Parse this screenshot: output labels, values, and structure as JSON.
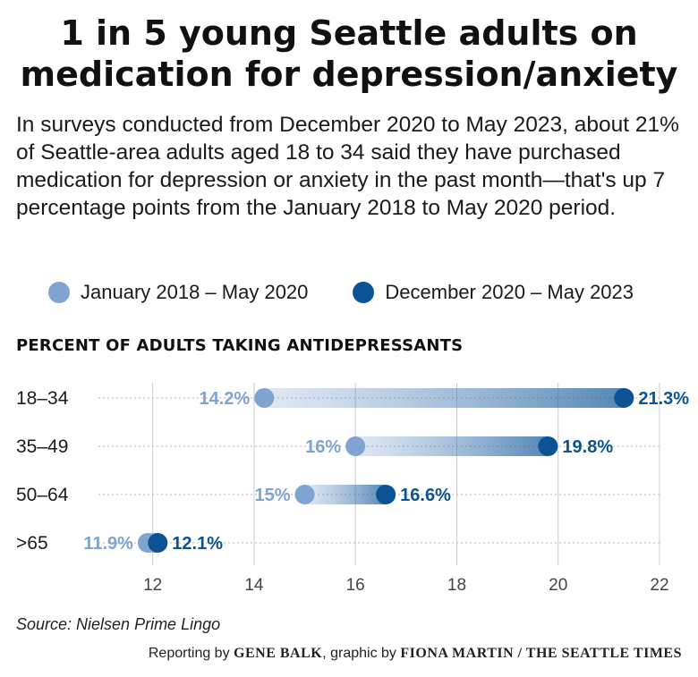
{
  "title": "1 in 5 young Seattle adults on medication for depression/anxiety",
  "subtitle": "In surveys conducted from December 2020 to May 2023, about 21% of Seattle-area adults aged 18 to 34 said they have purchased medication for depression or anxiety in the past month—that's up 7 percentage points from the January 2018 to May 2020 period.",
  "legend": [
    {
      "label": "January 2018 – May 2020",
      "color": "#7fa4d2"
    },
    {
      "label": "December 2020 – May 2023",
      "color": "#0b5394"
    }
  ],
  "chart_heading": "PERCENT OF ADULTS TAKING ANTIDEPRESSANTS",
  "chart_data": {
    "type": "dumbbell",
    "categories": [
      "18–34",
      "35–49",
      "50–64",
      ">65"
    ],
    "series": [
      {
        "name": "January 2018 – May 2020",
        "values": [
          14.2,
          16,
          15,
          11.9
        ],
        "labels": [
          "14.2%",
          "16%",
          "15%",
          "11.9%"
        ],
        "color": "#7fa4d2"
      },
      {
        "name": "December 2020 – May 2023",
        "values": [
          21.3,
          19.8,
          16.6,
          12.1
        ],
        "labels": [
          "21.3%",
          "19.8%",
          "16.6%",
          "12.1%"
        ],
        "color": "#0b5394"
      }
    ],
    "xlim": [
      11,
      22
    ],
    "xticks": [
      12,
      14,
      16,
      18,
      20,
      22
    ],
    "grid": true
  },
  "source": "Source: Nielsen Prime Lingo",
  "credit": {
    "prefix": "Reporting by ",
    "reporter": "GENE BALK",
    "middle": ", graphic by ",
    "graphic": "FIONA MARTIN / THE SEATTLE TIMES"
  }
}
